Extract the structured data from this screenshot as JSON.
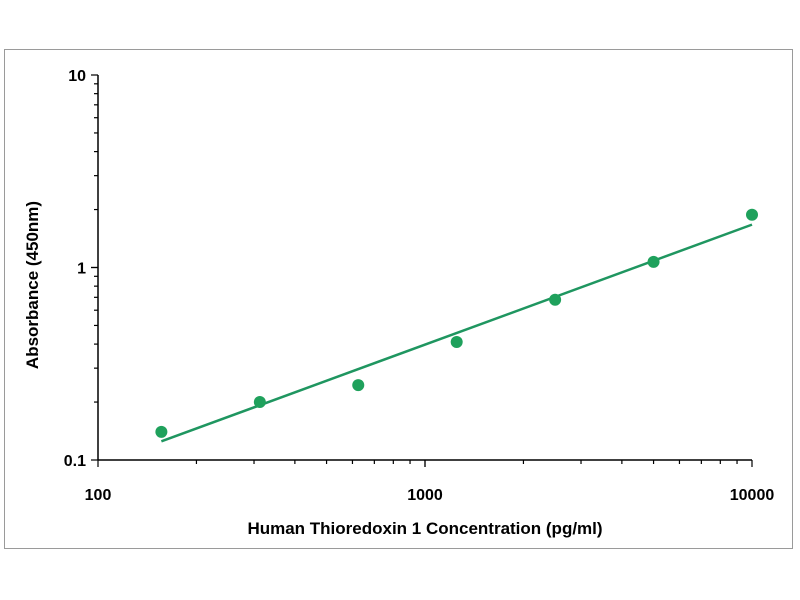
{
  "chart_data": {
    "type": "scatter",
    "title": "",
    "xlabel": "Human Thioredoxin 1 Concentration (pg/ml)",
    "ylabel": "Absorbance (450nm)",
    "x_scale": "log",
    "y_scale": "log",
    "xlim": [
      100,
      10000
    ],
    "ylim": [
      0.1,
      10
    ],
    "x_tick_labels": [
      "100",
      "1000",
      "10000"
    ],
    "y_tick_labels": [
      "0.1",
      "1",
      "10"
    ],
    "grid": false,
    "legend": "none",
    "series": [
      {
        "marker_color": "#1fa15c",
        "x": [
          156.25,
          312.5,
          625,
          1250,
          2500,
          5000,
          10000
        ],
        "y": [
          0.14,
          0.2,
          0.245,
          0.41,
          0.68,
          1.07,
          1.88
        ]
      }
    ],
    "trendline": {
      "color": "#1f9660",
      "x": [
        156.25,
        10000
      ],
      "y": [
        0.125,
        1.67
      ]
    }
  }
}
